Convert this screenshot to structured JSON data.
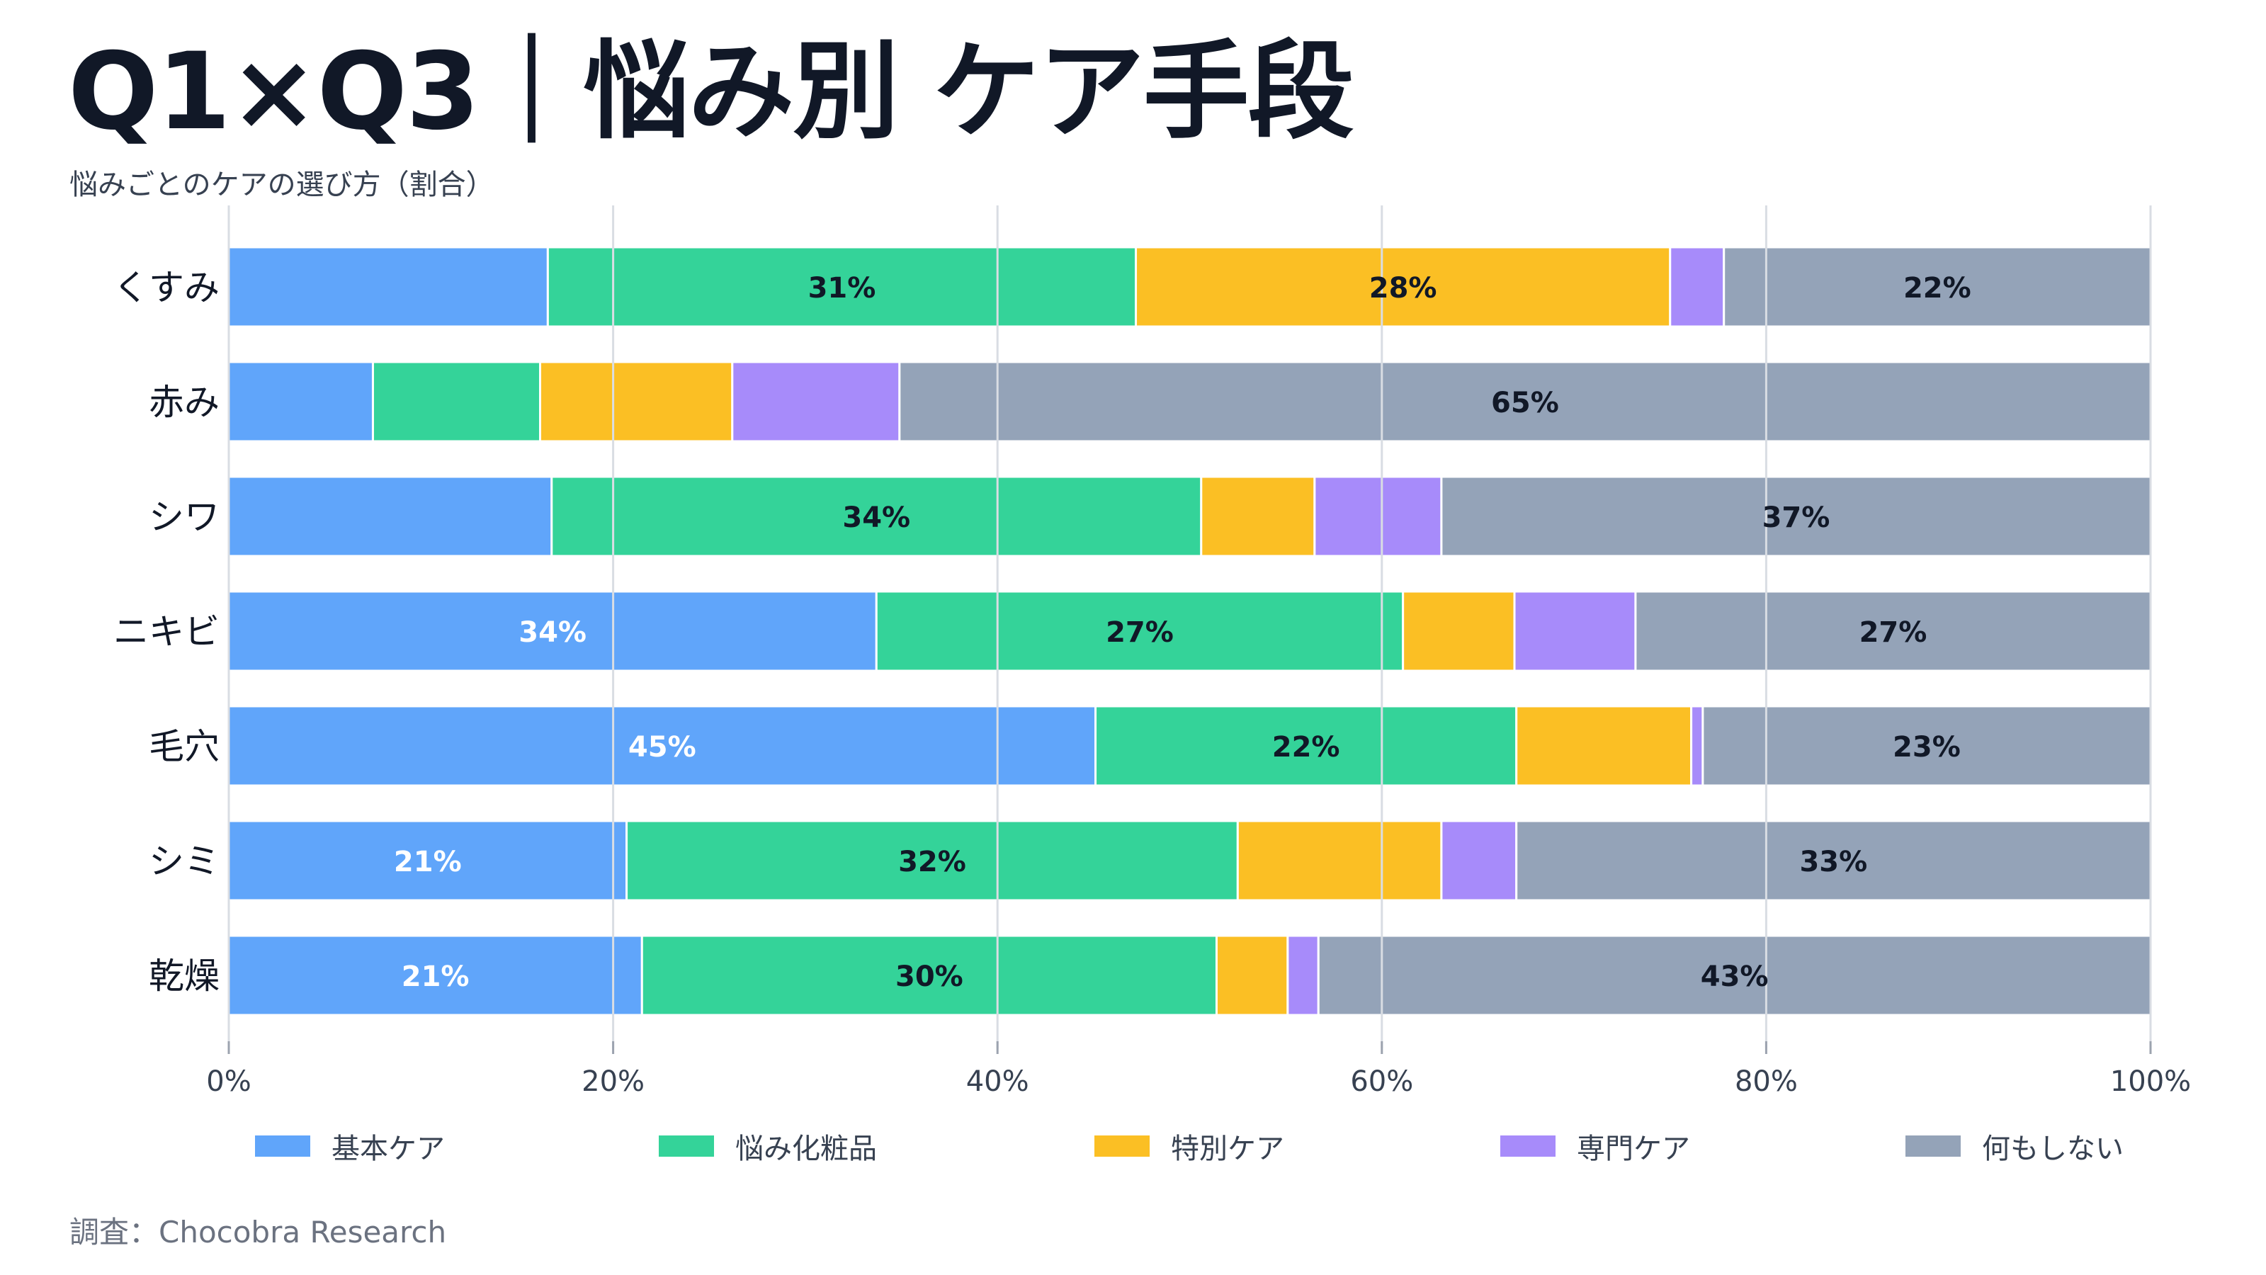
{
  "header": {
    "title": "Q1×Q3｜悩み別 ケア手段",
    "subtitle": "悩みごとのケアの選び方（割合）"
  },
  "footer": {
    "source": "調査：Chocobra Research"
  },
  "chart_data": {
    "type": "bar",
    "orientation": "horizontal",
    "stacked": true,
    "title": "Q1×Q3｜悩み別 ケア手段",
    "subtitle": "悩みごとのケアの選び方（割合）",
    "categories": [
      "くすみ",
      "赤み",
      "シワ",
      "ニキビ",
      "毛穴",
      "シミ",
      "乾燥"
    ],
    "series": [
      {
        "name": "基本ケア",
        "color": "#60a5fa",
        "label_color": "#ffffff",
        "values": [
          16.6,
          7.5,
          16.8,
          33.7,
          45.1,
          20.7,
          21.5
        ]
      },
      {
        "name": "悩み化粧品",
        "color": "#34d399",
        "label_color": "#111827",
        "values": [
          30.6,
          8.7,
          33.8,
          27.4,
          21.9,
          31.8,
          29.9
        ]
      },
      {
        "name": "特別ケア",
        "color": "#fbbf24",
        "label_color": "#111827",
        "values": [
          27.8,
          10.0,
          5.9,
          5.8,
          9.1,
          10.6,
          3.7
        ]
      },
      {
        "name": "専門ケア",
        "color": "#a78bfa",
        "label_color": "#111827",
        "values": [
          2.8,
          8.7,
          6.6,
          6.3,
          0.6,
          3.9,
          1.6
        ]
      },
      {
        "name": "何もしない",
        "color": "#94a3b8",
        "label_color": "#111827",
        "values": [
          22.2,
          65.1,
          36.9,
          26.8,
          23.3,
          33.0,
          43.3
        ]
      }
    ],
    "data_labels": [
      [
        null,
        "31%",
        "28%",
        null,
        "22%"
      ],
      [
        null,
        null,
        null,
        null,
        "65%"
      ],
      [
        null,
        "34%",
        null,
        null,
        "37%"
      ],
      [
        "34%",
        "27%",
        null,
        null,
        "27%"
      ],
      [
        "45%",
        "22%",
        null,
        null,
        "23%"
      ],
      [
        "21%",
        "32%",
        null,
        null,
        "33%"
      ],
      [
        "21%",
        "30%",
        null,
        null,
        "43%"
      ]
    ],
    "xlim": [
      0,
      100
    ],
    "xticks": [
      0,
      20,
      40,
      60,
      80,
      100
    ],
    "xtick_labels": [
      "0%",
      "20%",
      "40%",
      "60%",
      "80%",
      "100%"
    ],
    "xlabel": "",
    "ylabel": "",
    "grid": true,
    "legend": "bottom"
  }
}
